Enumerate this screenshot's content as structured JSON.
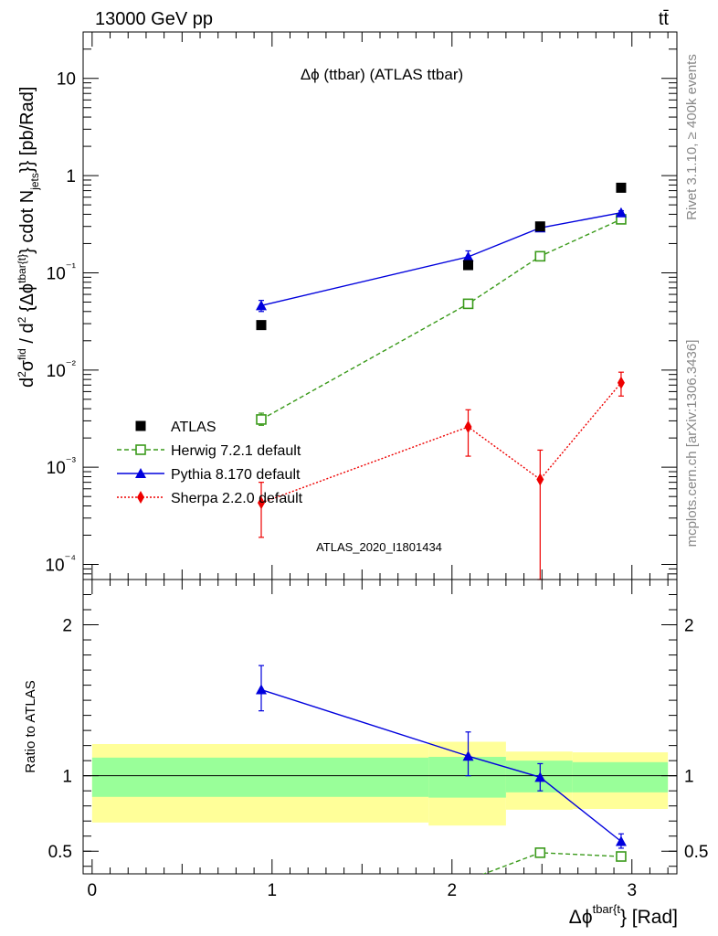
{
  "header": {
    "left": "13000 GeV pp",
    "right": "tt̄"
  },
  "side_labels": {
    "rivet": "Rivet 3.1.10, ≥ 400k events",
    "mcplots": "mcplots.cern.ch [arXiv:1306.3436]"
  },
  "chart_data": [
    {
      "type": "scatter",
      "title": "Δϕ (ttbar) (ATLAS ttbar)",
      "analysis_label": "ATLAS_2020_I1801434",
      "ylabel": "d²σ^fid / d² {Δϕ^tbar{t}} cdot N_jets}} [pb/Rad]",
      "yscale": "log",
      "ylim": [
        7e-05,
        30
      ],
      "xlim": [
        -0.05,
        3.25
      ],
      "ytick_labels": [
        "10⁻⁴",
        "10⁻³",
        "10⁻²",
        "10⁻¹",
        "1",
        "10"
      ],
      "ytick_values": [
        0.0001,
        0.001,
        0.01,
        0.1,
        1,
        10
      ],
      "legend_position": "lower-left",
      "series": [
        {
          "name": "ATLAS",
          "style": "data",
          "color": "#000000",
          "x": [
            0.94,
            2.09,
            2.49,
            2.94
          ],
          "y": [
            0.029,
            0.12,
            0.3,
            0.75
          ]
        },
        {
          "name": "Herwig 7.2.1 default",
          "style": "open-square-dashed",
          "color": "#3a9a1a",
          "x": [
            0.94,
            2.09,
            2.49,
            2.94
          ],
          "y": [
            0.0031,
            0.048,
            0.148,
            0.355
          ],
          "err_low": [
            0.0027,
            0.045,
            0.142,
            0.34
          ],
          "err_high": [
            0.0036,
            0.051,
            0.155,
            0.37
          ]
        },
        {
          "name": "Pythia 8.170 default",
          "style": "triangle-solid",
          "color": "#0000dd",
          "x": [
            0.94,
            2.09,
            2.49,
            2.94
          ],
          "y": [
            0.046,
            0.146,
            0.29,
            0.415
          ],
          "err_low": [
            0.04,
            0.128,
            0.272,
            0.395
          ],
          "err_high": [
            0.052,
            0.168,
            0.31,
            0.435
          ]
        },
        {
          "name": "Sherpa 2.2.0 default",
          "style": "diamond-dotted",
          "color": "#ee0000",
          "x": [
            0.94,
            2.09,
            2.49,
            2.94
          ],
          "y": [
            0.00043,
            0.0026,
            0.00075,
            0.0074
          ],
          "err_low": [
            0.00019,
            0.0013,
            7e-05,
            0.0054
          ],
          "err_high": [
            0.0007,
            0.0039,
            0.0015,
            0.0095
          ]
        }
      ]
    },
    {
      "type": "scatter",
      "ylabel": "Ratio to ATLAS",
      "xlabel": "Δϕ^tbar{t}} [Rad]",
      "ylim": [
        0.35,
        2.3
      ],
      "xlim": [
        -0.05,
        3.25
      ],
      "ytick_labels": [
        "0.5",
        "1",
        "2"
      ],
      "ytick_values": [
        0.5,
        1,
        2
      ],
      "xtick_labels": [
        "0",
        "1",
        "2",
        "3"
      ],
      "xtick_values": [
        0,
        1,
        2,
        3
      ],
      "bands": [
        {
          "x0": 0.0,
          "x1": 1.87,
          "inner": [
            0.86,
            1.12
          ],
          "outer": [
            0.69,
            1.21
          ]
        },
        {
          "x0": 1.87,
          "x1": 2.3,
          "inner": [
            0.855,
            1.125
          ],
          "outer": [
            0.67,
            1.225
          ]
        },
        {
          "x0": 2.3,
          "x1": 2.67,
          "inner": [
            0.89,
            1.1
          ],
          "outer": [
            0.775,
            1.16
          ]
        },
        {
          "x0": 2.67,
          "x1": 3.2,
          "inner": [
            0.89,
            1.09
          ],
          "outer": [
            0.78,
            1.155
          ]
        }
      ],
      "series": [
        {
          "name": "Herwig 7.2.1 default",
          "color": "#3a9a1a",
          "x": [
            2.09,
            2.49,
            2.94
          ],
          "y": [
            0.31,
            0.49,
            0.465
          ],
          "err_low": [
            0.3,
            0.465,
            0.455
          ],
          "err_high": [
            0.32,
            0.515,
            0.475
          ]
        },
        {
          "name": "Pythia 8.170 default",
          "color": "#0000dd",
          "x": [
            0.94,
            2.09,
            2.49,
            2.94
          ],
          "y": [
            1.57,
            1.13,
            0.99,
            0.565
          ],
          "err_low": [
            1.43,
            1.0,
            0.9,
            0.52
          ],
          "err_high": [
            1.73,
            1.29,
            1.08,
            0.615
          ]
        }
      ]
    }
  ]
}
